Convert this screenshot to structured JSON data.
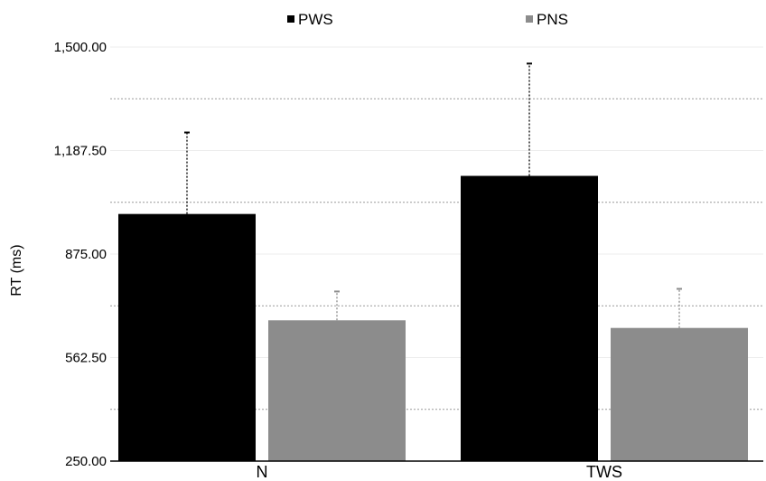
{
  "chart_data": {
    "type": "bar",
    "title": "",
    "xlabel": "",
    "ylabel": "RT (ms)",
    "ylim": [
      250,
      1500
    ],
    "yticks": [
      250,
      562.5,
      875,
      1187.5,
      1500
    ],
    "ytick_labels": [
      "250.00",
      "562.50",
      "875.00",
      "1,187.50",
      "1,500.00"
    ],
    "grid": "horizontal dotted, half-tick intervals",
    "legend_position": "top",
    "categories": [
      "N",
      "TWS"
    ],
    "series": [
      {
        "name": "PWS",
        "color": "#000000",
        "values": [
          996,
          1111
        ],
        "error_upper": [
          1242,
          1450
        ]
      },
      {
        "name": "PNS",
        "color": "#8c8c8c",
        "values": [
          675,
          652
        ],
        "error_upper": [
          762,
          770
        ]
      }
    ]
  }
}
